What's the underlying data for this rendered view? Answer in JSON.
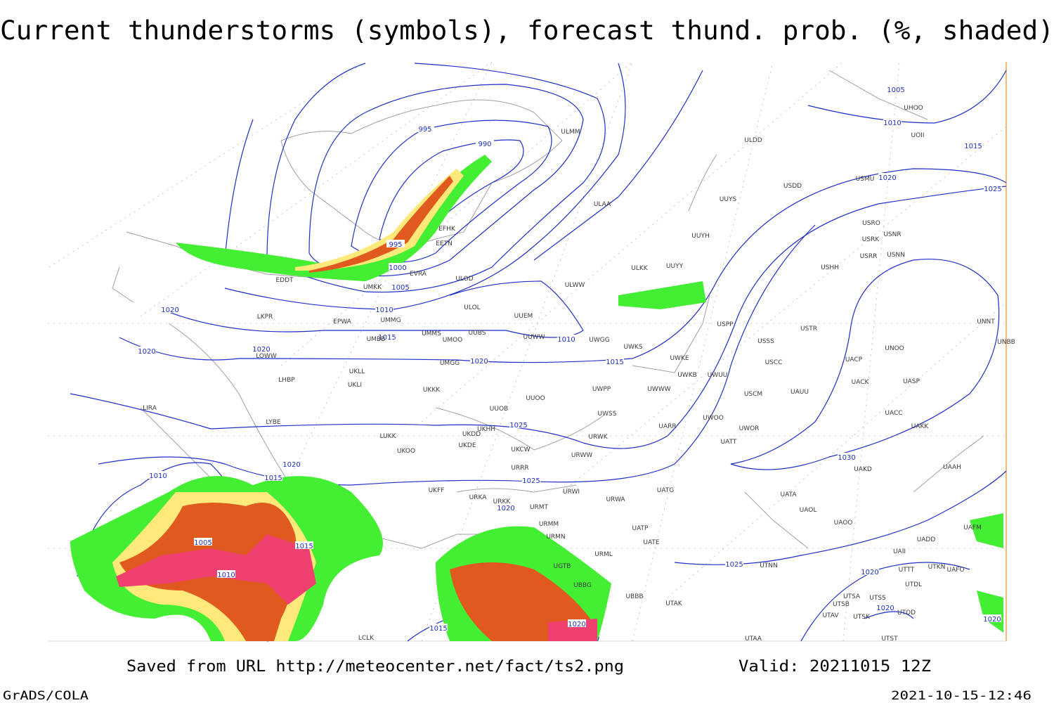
{
  "header": {
    "title": "Current thunderstorms (symbols), forecast thund. prob. (%, shaded)"
  },
  "footer": {
    "source": "Saved from URL http://meteocenter.net/fact/ts2.png",
    "valid": "Valid: 20211015 12Z",
    "software": "GrADS/COLA",
    "timestamp": "2021-10-15-12:46"
  },
  "isobar_labels": [
    995,
    990,
    995,
    1000,
    1005,
    1010,
    1015,
    1020,
    1020,
    1020,
    1020,
    1015,
    1010,
    1025,
    1025,
    1020,
    1030,
    1025,
    1020,
    1020,
    1020,
    1020,
    1015,
    1010,
    1005,
    1010,
    1015,
    1015,
    1020,
    1005,
    1010,
    1015,
    1020,
    1025
  ],
  "stations": [
    "ULMM",
    "ULDD",
    "UOII",
    "UHOO",
    "USDD",
    "USMU",
    "ULAA",
    "UUYS",
    "UUYH",
    "USRO",
    "USRK",
    "USNR",
    "USRR",
    "USNN",
    "USHH",
    "ULKK",
    "UUYY",
    "ULWW",
    "ULOD",
    "EFHK",
    "EETN",
    "EVRA",
    "UMKK",
    "EDDT",
    "ULOL",
    "UUEM",
    "EPWA",
    "UMMG",
    "LKPR",
    "UMMS",
    "UUBS",
    "UUWW",
    "UMOO",
    "UMBB",
    "UWGG",
    "UWKS",
    "USPP",
    "USTR",
    "USSS",
    "UNNT",
    "UNBB",
    "UNOO",
    "LOWW",
    "UMGG",
    "UWKE",
    "UWKB",
    "UWUU",
    "USCC",
    "UACP",
    "UKLL",
    "UKLI",
    "LHBP",
    "UKKK",
    "UWPP",
    "UWWW",
    "USCM",
    "UAUU",
    "UACK",
    "UASP",
    "UUOO",
    "LIRA",
    "LYBE",
    "UUOB",
    "UWSS",
    "UARR",
    "UWOO",
    "UWOR",
    "UACC",
    "UAKK",
    "LUKK",
    "UKHH",
    "UKDD",
    "UKDE",
    "UKCW",
    "URWK",
    "UATT",
    "UKOO",
    "URWW",
    "UAKD",
    "UAAH",
    "URRR",
    "UKFF",
    "URWI",
    "UATG",
    "URKA",
    "URKK",
    "URWA",
    "UATA",
    "UAOL",
    "URMT",
    "UAOO",
    "URMM",
    "UATP",
    "URMN",
    "UATE",
    "UADD",
    "UAFM",
    "URML",
    "UTNN",
    "UAII",
    "UTTT",
    "UTKN",
    "UAFO",
    "UTDL",
    "UGTB",
    "UBBG",
    "UBBB",
    "UTSA",
    "UTSS",
    "UTSB",
    "UTOD",
    "UTAK",
    "UTAV",
    "UTSK",
    "UTST",
    "UTAA",
    "LCLK"
  ]
}
